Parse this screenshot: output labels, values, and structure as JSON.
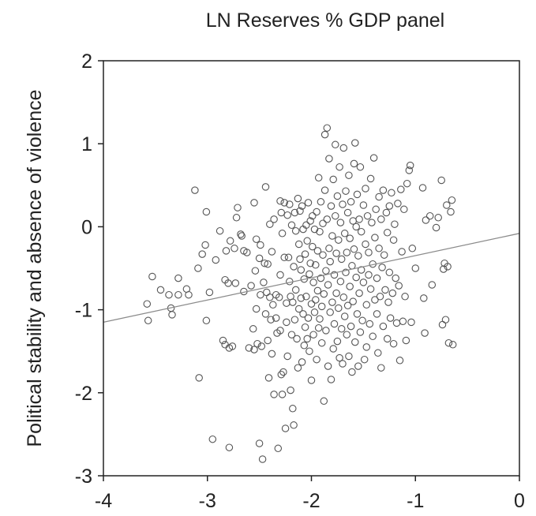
{
  "chart_data": {
    "type": "scatter",
    "title": "LN Reserves % GDP panel",
    "xlabel": "",
    "ylabel": "Political stability and absence of violence",
    "xlim": [
      -4,
      0
    ],
    "ylim": [
      -3,
      2
    ],
    "xticks": [
      "-4",
      "-3",
      "-2",
      "-1",
      "0"
    ],
    "yticks": [
      "2",
      "1",
      "0",
      "-1",
      "-2",
      "-3"
    ],
    "grid": false,
    "fit_line": {
      "x": [
        -4,
        0
      ],
      "y": [
        -1.15,
        -0.08
      ]
    },
    "points": [
      [
        -3.58,
        -0.93
      ],
      [
        -3.57,
        -1.13
      ],
      [
        -3.53,
        -0.6
      ],
      [
        -3.45,
        -0.76
      ],
      [
        -3.37,
        -0.82
      ],
      [
        -3.35,
        -0.98
      ],
      [
        -3.34,
        -1.06
      ],
      [
        -3.28,
        -0.62
      ],
      [
        -3.28,
        -0.82
      ],
      [
        -3.2,
        -0.75
      ],
      [
        -3.18,
        -0.82
      ],
      [
        -3.12,
        0.44
      ],
      [
        -3.09,
        -0.5
      ],
      [
        -3.08,
        -1.82
      ],
      [
        -3.05,
        -0.33
      ],
      [
        -3.02,
        -0.22
      ],
      [
        -3.01,
        -1.13
      ],
      [
        -3.01,
        0.18
      ],
      [
        -2.98,
        -0.79
      ],
      [
        -2.95,
        -2.56
      ],
      [
        -2.92,
        -0.4
      ],
      [
        -2.88,
        -0.05
      ],
      [
        -2.85,
        -1.37
      ],
      [
        -2.83,
        -1.42
      ],
      [
        -2.83,
        -0.64
      ],
      [
        -2.82,
        -0.29
      ],
      [
        -2.8,
        -0.68
      ],
      [
        -2.79,
        -1.46
      ],
      [
        -2.79,
        -2.66
      ],
      [
        -2.78,
        -0.17
      ],
      [
        -2.76,
        -1.44
      ],
      [
        -2.74,
        -0.26
      ],
      [
        -2.73,
        -0.68
      ],
      [
        -2.72,
        0.11
      ],
      [
        -2.71,
        0.23
      ],
      [
        -2.68,
        -0.09
      ],
      [
        -2.67,
        -0.11
      ],
      [
        -2.65,
        -0.29
      ],
      [
        -2.65,
        -0.78
      ],
      [
        -2.62,
        -0.31
      ],
      [
        -2.6,
        -1.46
      ],
      [
        -2.58,
        -0.71
      ],
      [
        -2.56,
        -1.23
      ],
      [
        -2.55,
        0.29
      ],
      [
        -2.55,
        -1.48
      ],
      [
        -2.54,
        -0.53
      ],
      [
        -2.53,
        -0.15
      ],
      [
        -2.53,
        -0.99
      ],
      [
        -2.52,
        -1.41
      ],
      [
        -2.5,
        -2.61
      ],
      [
        -2.5,
        -0.38
      ],
      [
        -2.49,
        -0.22
      ],
      [
        -2.49,
        -0.82
      ],
      [
        -2.48,
        -1.44
      ],
      [
        -2.47,
        -2.8
      ],
      [
        -2.46,
        -0.67
      ],
      [
        -2.45,
        -0.44
      ],
      [
        -2.44,
        -1.05
      ],
      [
        -2.44,
        0.48
      ],
      [
        -2.43,
        -0.79
      ],
      [
        -2.42,
        -0.45
      ],
      [
        -2.42,
        -1.37
      ],
      [
        -2.41,
        -1.82
      ],
      [
        -2.4,
        -0.85
      ],
      [
        -2.4,
        0.03
      ],
      [
        -2.39,
        -1.12
      ],
      [
        -2.38,
        -1.53
      ],
      [
        -2.38,
        -0.3
      ],
      [
        -2.37,
        -0.94
      ],
      [
        -2.36,
        -2.02
      ],
      [
        -2.36,
        0.09
      ],
      [
        -2.34,
        -0.82
      ],
      [
        -2.34,
        -1.1
      ],
      [
        -2.33,
        -1.28
      ],
      [
        -2.32,
        -2.67
      ],
      [
        -2.31,
        -0.85
      ],
      [
        -2.3,
        0.31
      ],
      [
        -2.3,
        -0.58
      ],
      [
        -2.3,
        -1.25
      ],
      [
        -2.29,
        -1.78
      ],
      [
        -2.29,
        0.17
      ],
      [
        -2.28,
        -0.08
      ],
      [
        -2.28,
        -2.02
      ],
      [
        -2.27,
        -1.75
      ],
      [
        -2.26,
        -0.37
      ],
      [
        -2.26,
        0.29
      ],
      [
        -2.25,
        -2.43
      ],
      [
        -2.24,
        -1.15
      ],
      [
        -2.24,
        -0.92
      ],
      [
        -2.23,
        0.14
      ],
      [
        -2.23,
        -1.56
      ],
      [
        -2.22,
        -0.37
      ],
      [
        -2.21,
        -0.66
      ],
      [
        -2.21,
        0.27
      ],
      [
        -2.2,
        -1.97
      ],
      [
        -2.2,
        -0.84
      ],
      [
        -2.19,
        0.02
      ],
      [
        -2.19,
        -1.3
      ],
      [
        -2.18,
        -2.19
      ],
      [
        -2.18,
        -0.91
      ],
      [
        -2.17,
        -2.39
      ],
      [
        -2.17,
        -0.48
      ],
      [
        -2.16,
        0.17
      ],
      [
        -2.16,
        -1.12
      ],
      [
        -2.15,
        -0.05
      ],
      [
        -2.15,
        -0.76
      ],
      [
        -2.14,
        -1.35
      ],
      [
        -2.13,
        0.34
      ],
      [
        -2.13,
        -1.7
      ],
      [
        -2.12,
        -0.21
      ],
      [
        -2.12,
        -0.99
      ],
      [
        -2.11,
        -0.39
      ],
      [
        -2.11,
        0.19
      ],
      [
        -2.1,
        -0.86
      ],
      [
        -2.1,
        -0.52
      ],
      [
        -2.09,
        -1.63
      ],
      [
        -2.09,
        0.25
      ],
      [
        -2.08,
        -1.05
      ],
      [
        -2.08,
        -0.03
      ],
      [
        -2.07,
        -1.43
      ],
      [
        -2.07,
        -0.63
      ],
      [
        -2.06,
        -0.33
      ],
      [
        -2.06,
        -1.21
      ],
      [
        -2.05,
        0.02
      ],
      [
        -2.05,
        -0.84
      ],
      [
        -2.04,
        -1.35
      ],
      [
        -2.04,
        -0.17
      ],
      [
        -2.03,
        0.29
      ],
      [
        -2.03,
        -1.1
      ],
      [
        -2.02,
        -0.57
      ],
      [
        -2.02,
        -1.5
      ],
      [
        -2.01,
        0.07
      ],
      [
        -2.01,
        -0.44
      ],
      [
        -2.0,
        -0.93
      ],
      [
        -2.0,
        -1.85
      ],
      [
        -1.99,
        -0.24
      ],
      [
        -1.99,
        0.13
      ],
      [
        -1.98,
        -0.67
      ],
      [
        -1.98,
        -1.3
      ],
      [
        -1.97,
        -0.03
      ],
      [
        -1.97,
        -1.03
      ],
      [
        -1.96,
        -0.46
      ],
      [
        -1.96,
        -0.88
      ],
      [
        -1.95,
        0.18
      ],
      [
        -1.95,
        -1.6
      ],
      [
        -1.94,
        -0.29
      ],
      [
        -1.94,
        -0.77
      ],
      [
        -1.93,
        -1.22
      ],
      [
        -1.93,
        0.59
      ],
      [
        -1.92,
        -0.06
      ],
      [
        -1.92,
        -1.11
      ],
      [
        -1.91,
        -0.62
      ],
      [
        -1.91,
        0.3
      ],
      [
        -1.9,
        -0.96
      ],
      [
        -1.9,
        -1.4
      ],
      [
        -1.89,
        -0.34
      ],
      [
        -1.89,
        0.04
      ],
      [
        -1.88,
        -2.1
      ],
      [
        -1.88,
        -0.81
      ],
      [
        -1.87,
        1.11
      ],
      [
        -1.87,
        0.44
      ],
      [
        -1.86,
        -0.53
      ],
      [
        -1.86,
        -1.25
      ],
      [
        -1.85,
        1.19
      ],
      [
        -1.85,
        0.09
      ],
      [
        -1.84,
        -0.7
      ],
      [
        -1.84,
        -1.68
      ],
      [
        -1.83,
        -0.26
      ],
      [
        -1.83,
        0.82
      ],
      [
        -1.82,
        -1.03
      ],
      [
        -1.82,
        -0.42
      ],
      [
        -1.81,
        0.25
      ],
      [
        -1.81,
        -1.84
      ],
      [
        -1.8,
        -0.91
      ],
      [
        -1.8,
        -0.11
      ],
      [
        -1.79,
        0.57
      ],
      [
        -1.79,
        -1.47
      ],
      [
        -1.78,
        -0.58
      ],
      [
        -1.78,
        -1.17
      ],
      [
        -1.77,
        0.99
      ],
      [
        -1.77,
        0.13
      ],
      [
        -1.76,
        -0.8
      ],
      [
        -1.76,
        -0.32
      ],
      [
        -1.75,
        -1.38
      ],
      [
        -1.75,
        0.37
      ],
      [
        -1.74,
        -0.98
      ],
      [
        -1.74,
        -0.16
      ],
      [
        -1.73,
        0.72
      ],
      [
        -1.73,
        -1.58
      ],
      [
        -1.72,
        -0.66
      ],
      [
        -1.72,
        0.05
      ],
      [
        -1.71,
        -1.23
      ],
      [
        -1.71,
        -0.39
      ],
      [
        -1.7,
        0.27
      ],
      [
        -1.7,
        -1.65
      ],
      [
        -1.69,
        -0.85
      ],
      [
        -1.69,
        0.95
      ],
      [
        -1.68,
        -0.08
      ],
      [
        -1.68,
        -1.08
      ],
      [
        -1.67,
        -0.55
      ],
      [
        -1.67,
        0.43
      ],
      [
        -1.66,
        -1.3
      ],
      [
        -1.66,
        -0.31
      ],
      [
        -1.65,
        0.17
      ],
      [
        -1.65,
        -0.95
      ],
      [
        -1.64,
        -1.56
      ],
      [
        -1.64,
        0.62
      ],
      [
        -1.63,
        -0.72
      ],
      [
        -1.63,
        -0.14
      ],
      [
        -1.62,
        -1.2
      ],
      [
        -1.62,
        0.3
      ],
      [
        -1.61,
        -0.47
      ],
      [
        -1.61,
        -1.75
      ],
      [
        -1.6,
        0.07
      ],
      [
        -1.6,
        -0.9
      ],
      [
        -1.59,
        0.76
      ],
      [
        -1.59,
        -0.27
      ],
      [
        -1.58,
        -1.39
      ],
      [
        -1.58,
        1.01
      ],
      [
        -1.57,
        -0.61
      ],
      [
        -1.57,
        0.0
      ],
      [
        -1.56,
        -1.05
      ],
      [
        -1.56,
        0.39
      ],
      [
        -1.55,
        -0.35
      ],
      [
        -1.55,
        -1.68
      ],
      [
        -1.54,
        0.09
      ],
      [
        -1.54,
        -0.8
      ],
      [
        -1.53,
        -1.27
      ],
      [
        -1.53,
        0.72
      ],
      [
        -1.52,
        -0.52
      ],
      [
        -1.52,
        -0.06
      ],
      [
        -1.51,
        -1.13
      ],
      [
        -1.5,
        0.26
      ],
      [
        -1.5,
        -0.67
      ],
      [
        -1.49,
        -1.6
      ],
      [
        -1.48,
        -0.21
      ],
      [
        -1.48,
        0.46
      ],
      [
        -1.47,
        -0.94
      ],
      [
        -1.47,
        -1.45
      ],
      [
        -1.46,
        0.13
      ],
      [
        -1.45,
        -0.58
      ],
      [
        -1.45,
        -0.31
      ],
      [
        -1.44,
        -1.17
      ],
      [
        -1.43,
        0.58
      ],
      [
        -1.43,
        -0.75
      ],
      [
        -1.42,
        0.05
      ],
      [
        -1.41,
        -1.32
      ],
      [
        -1.41,
        -0.45
      ],
      [
        -1.4,
        0.83
      ],
      [
        -1.39,
        -0.88
      ],
      [
        -1.39,
        -0.13
      ],
      [
        -1.38,
        0.21
      ],
      [
        -1.37,
        -1.05
      ],
      [
        -1.37,
        -0.62
      ],
      [
        -1.36,
        -1.52
      ],
      [
        -1.35,
        -0.26
      ],
      [
        -1.35,
        0.36
      ],
      [
        -1.34,
        -0.84
      ],
      [
        -1.33,
        -1.7
      ],
      [
        -1.33,
        0.09
      ],
      [
        -1.32,
        -0.49
      ],
      [
        -1.31,
        -1.2
      ],
      [
        -1.31,
        0.44
      ],
      [
        -1.3,
        -0.34
      ],
      [
        -1.29,
        -0.76
      ],
      [
        -1.28,
        0.17
      ],
      [
        -1.27,
        -1.35
      ],
      [
        -1.27,
        -0.07
      ],
      [
        -1.26,
        -0.91
      ],
      [
        -1.25,
        0.25
      ],
      [
        -1.25,
        -0.55
      ],
      [
        -1.24,
        -1.1
      ],
      [
        -1.23,
        0.41
      ],
      [
        -1.22,
        -0.8
      ],
      [
        -1.21,
        -0.16
      ],
      [
        -1.21,
        -1.41
      ],
      [
        -1.2,
        0.03
      ],
      [
        -1.19,
        -0.62
      ],
      [
        -1.18,
        -1.16
      ],
      [
        -1.17,
        0.28
      ],
      [
        -1.16,
        -0.71
      ],
      [
        -1.15,
        -1.61
      ],
      [
        -1.14,
        0.45
      ],
      [
        -1.13,
        -0.3
      ],
      [
        -1.12,
        -1.14
      ],
      [
        -1.11,
        0.21
      ],
      [
        -1.1,
        -0.84
      ],
      [
        -1.09,
        -1.37
      ],
      [
        -1.08,
        0.52
      ],
      [
        -1.06,
        0.68
      ],
      [
        -1.05,
        0.74
      ],
      [
        -1.04,
        -1.15
      ],
      [
        -1.03,
        -0.26
      ],
      [
        -1.0,
        -0.5
      ],
      [
        -0.93,
        0.47
      ],
      [
        -0.92,
        -0.86
      ],
      [
        -0.91,
        -1.28
      ],
      [
        -0.9,
        0.08
      ],
      [
        -0.86,
        0.13
      ],
      [
        -0.84,
        -0.7
      ],
      [
        -0.8,
        -0.01
      ],
      [
        -0.78,
        0.11
      ],
      [
        -0.75,
        0.56
      ],
      [
        -0.74,
        -1.18
      ],
      [
        -0.73,
        -0.51
      ],
      [
        -0.72,
        -0.44
      ],
      [
        -0.71,
        -1.12
      ],
      [
        -0.7,
        0.26
      ],
      [
        -0.69,
        -0.48
      ],
      [
        -0.68,
        -1.4
      ],
      [
        -0.66,
        0.18
      ],
      [
        -0.65,
        0.32
      ],
      [
        -0.64,
        -1.42
      ]
    ]
  }
}
